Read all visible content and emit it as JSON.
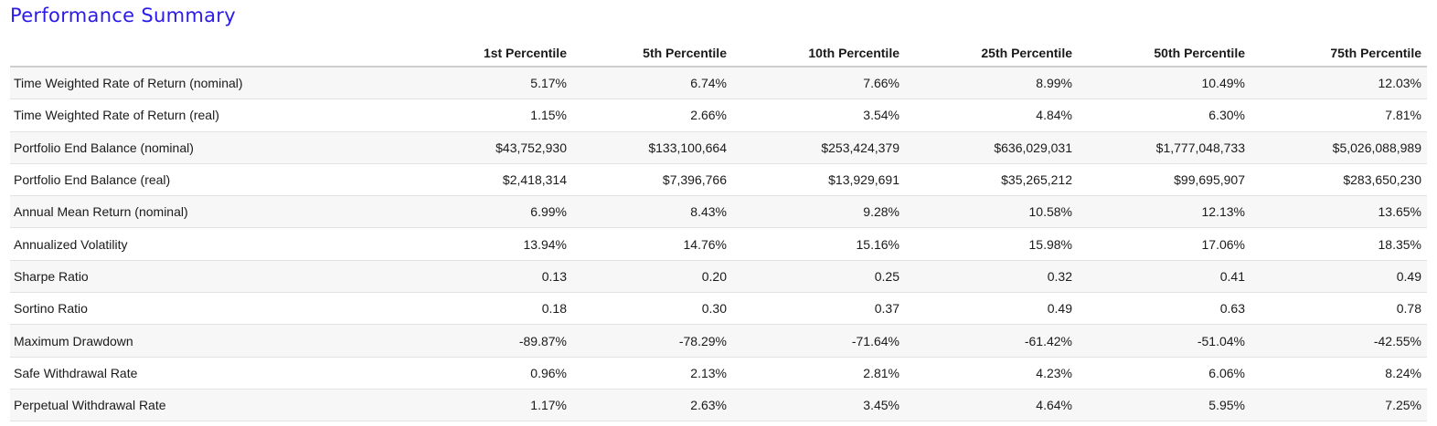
{
  "title": "Performance Summary",
  "colors": {
    "title": "#2b1be8",
    "stripe": "#f7f7f7"
  },
  "table": {
    "headers": [
      "",
      "1st Percentile",
      "5th Percentile",
      "10th Percentile",
      "25th Percentile",
      "50th Percentile",
      "75th Percentile"
    ],
    "rows": [
      [
        "Time Weighted Rate of Return (nominal)",
        "5.17%",
        "6.74%",
        "7.66%",
        "8.99%",
        "10.49%",
        "12.03%"
      ],
      [
        "Time Weighted Rate of Return (real)",
        "1.15%",
        "2.66%",
        "3.54%",
        "4.84%",
        "6.30%",
        "7.81%"
      ],
      [
        "Portfolio End Balance (nominal)",
        "$43,752,930",
        "$133,100,664",
        "$253,424,379",
        "$636,029,031",
        "$1,777,048,733",
        "$5,026,088,989"
      ],
      [
        "Portfolio End Balance (real)",
        "$2,418,314",
        "$7,396,766",
        "$13,929,691",
        "$35,265,212",
        "$99,695,907",
        "$283,650,230"
      ],
      [
        "Annual Mean Return (nominal)",
        "6.99%",
        "8.43%",
        "9.28%",
        "10.58%",
        "12.13%",
        "13.65%"
      ],
      [
        "Annualized Volatility",
        "13.94%",
        "14.76%",
        "15.16%",
        "15.98%",
        "17.06%",
        "18.35%"
      ],
      [
        "Sharpe Ratio",
        "0.13",
        "0.20",
        "0.25",
        "0.32",
        "0.41",
        "0.49"
      ],
      [
        "Sortino Ratio",
        "0.18",
        "0.30",
        "0.37",
        "0.49",
        "0.63",
        "0.78"
      ],
      [
        "Maximum Drawdown",
        "-89.87%",
        "-78.29%",
        "-71.64%",
        "-61.42%",
        "-51.04%",
        "-42.55%"
      ],
      [
        "Safe Withdrawal Rate",
        "0.96%",
        "2.13%",
        "2.81%",
        "4.23%",
        "6.06%",
        "8.24%"
      ],
      [
        "Perpetual Withdrawal Rate",
        "1.17%",
        "2.63%",
        "3.45%",
        "4.64%",
        "5.95%",
        "7.25%"
      ]
    ]
  }
}
